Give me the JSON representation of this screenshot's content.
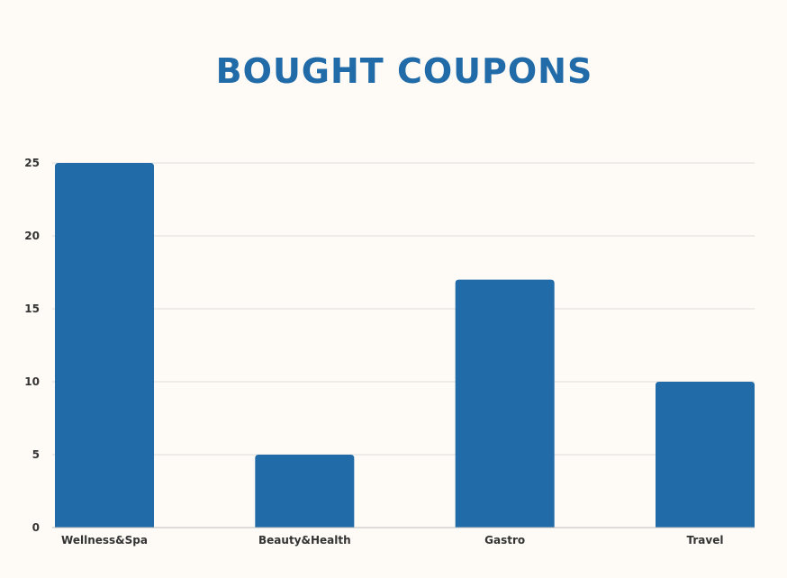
{
  "chart_data": {
    "type": "bar",
    "title": "BOUGHT COUPONS",
    "categories": [
      "Wellness&Spa",
      "Beauty&Health",
      "Gastro",
      "Travel"
    ],
    "values": [
      25,
      5,
      17,
      10
    ],
    "ylim": [
      0,
      25
    ],
    "yticks": [
      "0",
      "5",
      "10",
      "15",
      "20",
      "25"
    ],
    "grid": true,
    "xlabel": "",
    "ylabel": ""
  },
  "colors": {
    "bar": "#216ba8",
    "title": "#216ba8",
    "grid": "#dcdcdc",
    "background": "#fefbf6"
  }
}
